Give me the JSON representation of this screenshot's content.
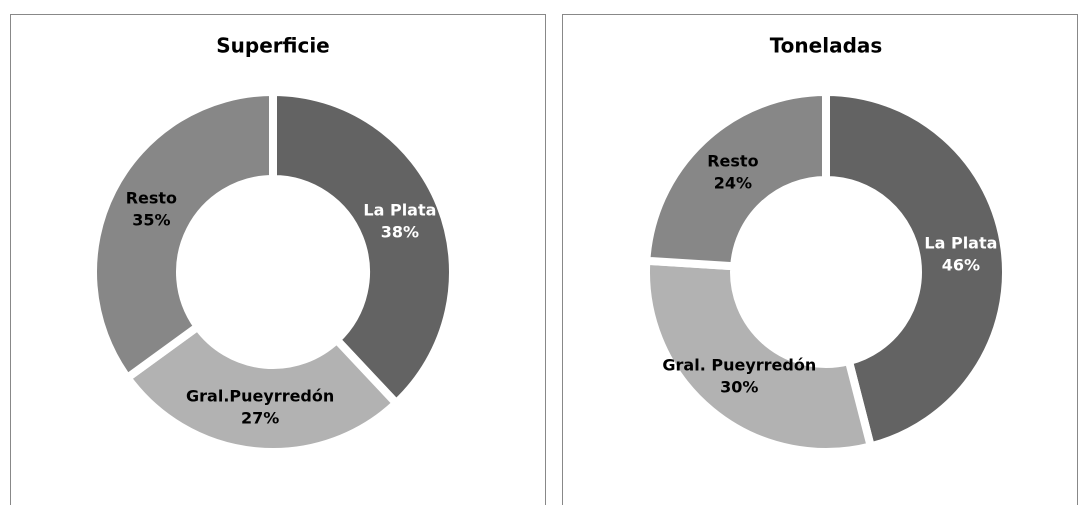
{
  "chart_data": [
    {
      "type": "donut",
      "title": "Superficie",
      "categories": [
        "La Plata",
        "Gral.Pueyrredón",
        "Resto"
      ],
      "values": [
        38,
        27,
        35
      ],
      "value_labels": [
        "38%",
        "27%",
        "35%"
      ],
      "colors": [
        "#636363",
        "#b2b2b2",
        "#878787"
      ]
    },
    {
      "type": "donut",
      "title": "Toneladas",
      "categories": [
        "La Plata",
        "Gral. Pueyrredón",
        "Resto"
      ],
      "values": [
        46,
        30,
        24
      ],
      "value_labels": [
        "46%",
        "30%",
        "24%"
      ],
      "colors": [
        "#636363",
        "#b2b2b2",
        "#878787"
      ]
    }
  ]
}
